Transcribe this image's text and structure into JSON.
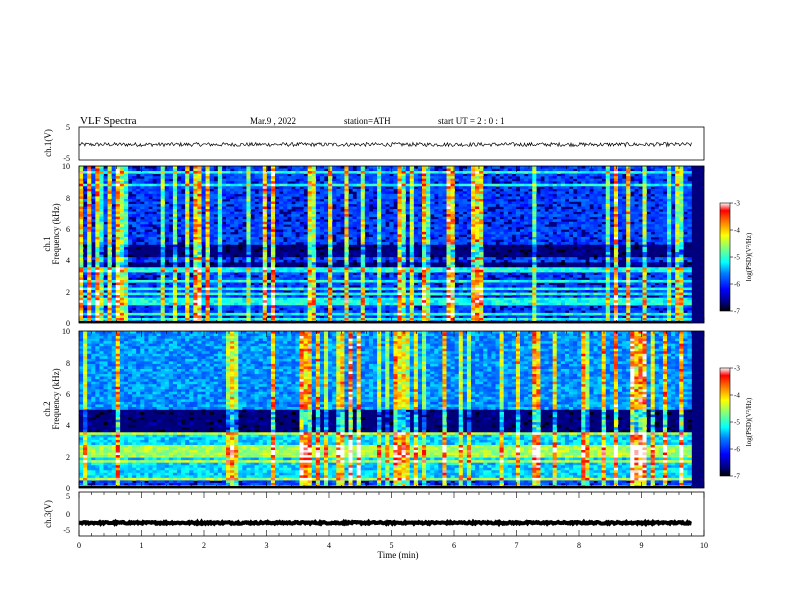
{
  "header": {
    "title": "VLF  Spectra",
    "date": "Mar.9  , 2022",
    "station": "station=ATH",
    "start_time": "start  UT  =   2  : 0   : 1"
  },
  "chart_data": [
    {
      "id": "ch1-waveform",
      "type": "line",
      "ylabel": "ch.1(V)",
      "ylim": [
        -5,
        5
      ],
      "yticks": [
        "5",
        "-5"
      ],
      "xlim": [
        0,
        10
      ],
      "description_values": {
        "mean": -0.3,
        "amplitude": 0.6
      },
      "xend": 9.8
    },
    {
      "id": "ch1-spectrogram",
      "type": "heatmap",
      "ylabel_line1": "ch.1",
      "ylabel_line2": "Frequency  (kHz)",
      "ylim": [
        0,
        10
      ],
      "yticks": [
        "0",
        "2",
        "4",
        "6",
        "8",
        "10"
      ],
      "xlim": [
        0,
        10
      ],
      "xend": 9.8,
      "colorbar": {
        "label": "log(PSD)(V²/Hz)",
        "range": [
          -7,
          -3
        ],
        "ticks": [
          "-3",
          "-4",
          "-5",
          "-6",
          "-7"
        ]
      }
    },
    {
      "id": "ch2-spectrogram",
      "type": "heatmap",
      "ylabel_line1": "ch.2",
      "ylabel_line2": "Frequency  (kHz)",
      "ylim": [
        0,
        10
      ],
      "yticks": [
        "0",
        "2",
        "4",
        "6",
        "8",
        "10"
      ],
      "xlim": [
        0,
        10
      ],
      "xend": 9.8,
      "colorbar": {
        "label": "log(PSD)(V²/Hz)",
        "range": [
          -7,
          -3
        ],
        "ticks": [
          "-3",
          "-4",
          "-5",
          "-6",
          "-7"
        ]
      }
    },
    {
      "id": "ch3-waveform",
      "type": "line",
      "ylabel": "ch.3(V)",
      "ylim": [
        -5,
        5
      ],
      "yticks": [
        "5",
        "0",
        "-5"
      ],
      "xlim": [
        0,
        10
      ],
      "description_values": {
        "mean": -2.0,
        "amplitude": 0.2
      },
      "xend": 9.8
    }
  ],
  "xaxis": {
    "label": "Time  (min)",
    "ticks": [
      "0",
      "1",
      "2",
      "3",
      "4",
      "5",
      "6",
      "7",
      "8",
      "9",
      "10"
    ]
  },
  "colors": {
    "background": "#ffffff",
    "axis": "#000000",
    "colormap": [
      "#000000",
      "#00007f",
      "#0000ff",
      "#007fff",
      "#00ffff",
      "#7fff7f",
      "#ffff00",
      "#ff7f00",
      "#ff0000",
      "#ffffff"
    ]
  }
}
